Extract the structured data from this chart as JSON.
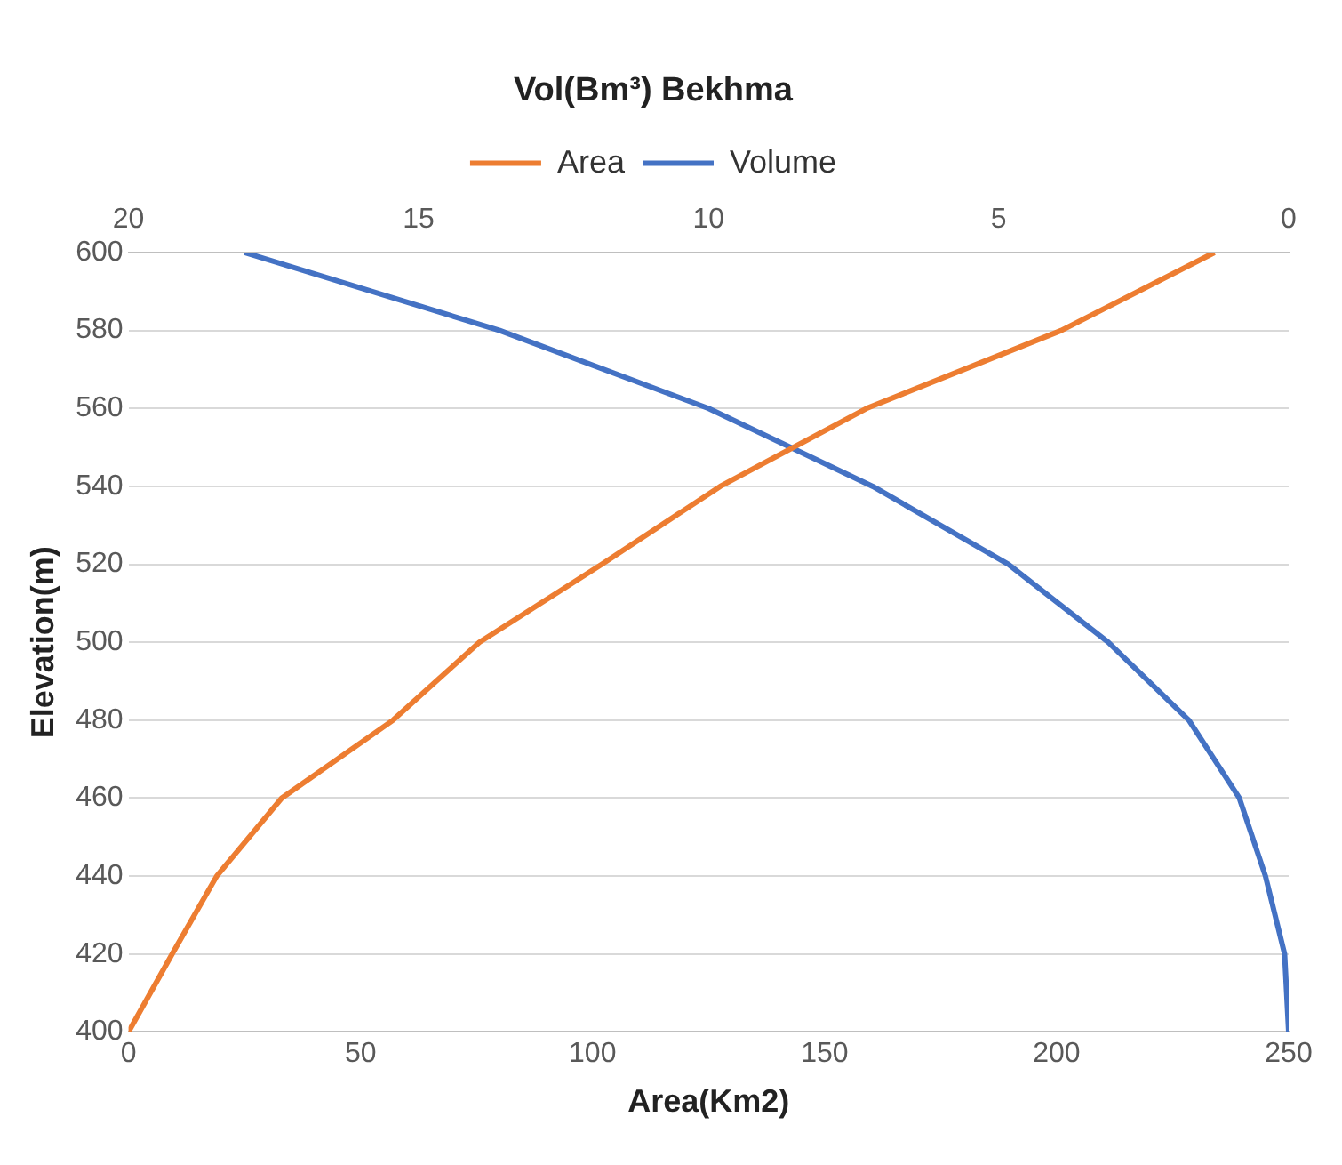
{
  "chart_data": {
    "type": "line",
    "title": "Vol(Bm³) Bekhma",
    "xlabel": "Area(Km2)",
    "ylabel": "Elevation(m)",
    "xlim": [
      0,
      250
    ],
    "xticks": [
      0,
      50,
      100,
      150,
      200,
      250
    ],
    "x2lim": [
      20,
      0
    ],
    "x2ticks": [
      20,
      15,
      10,
      5,
      0
    ],
    "ylim": [
      400,
      600
    ],
    "yticks": [
      400,
      420,
      440,
      460,
      480,
      500,
      520,
      540,
      560,
      580,
      600
    ],
    "grid": "y",
    "legend": "top",
    "marker": "none",
    "series": [
      {
        "name": "Area",
        "color": "#ed7d31",
        "x": [
          0,
          9.4,
          19,
          33,
          57,
          75.6,
          102,
          127.5,
          159,
          201,
          234
        ],
        "values": [
          400,
          420,
          440,
          460,
          480,
          500,
          520,
          540,
          560,
          580,
          600
        ]
      },
      {
        "name": "Volume",
        "color": "#4472c4",
        "axis": "x2",
        "x": [
          0,
          0.07,
          0.4,
          0.85,
          1.72,
          3.11,
          4.83,
          7.17,
          10,
          13.6,
          18
        ],
        "values": [
          400,
          420,
          440,
          460,
          480,
          500,
          520,
          540,
          560,
          580,
          600
        ]
      }
    ]
  }
}
